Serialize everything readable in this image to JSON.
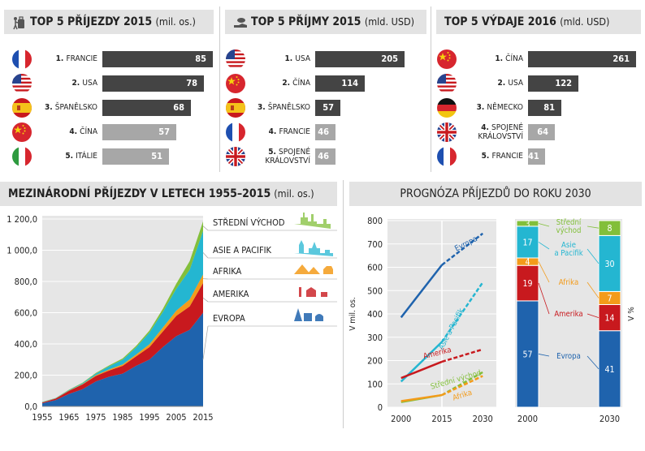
{
  "top5": [
    {
      "prefix": "TOP 5",
      "title": "PŘÍJEZDY 2015",
      "unit": "(mil. os.)",
      "items": [
        {
          "rank": "1.",
          "name": "FRANCIE",
          "value": 85,
          "flag": "fr"
        },
        {
          "rank": "2.",
          "name": "USA",
          "value": 78,
          "flag": "us"
        },
        {
          "rank": "3.",
          "name": "ŠPANĚLSKO",
          "value": 68,
          "flag": "es"
        },
        {
          "rank": "4.",
          "name": "ČÍNA",
          "value": 57,
          "flag": "cn"
        },
        {
          "rank": "5.",
          "name": "ITÁLIE",
          "value": 51,
          "flag": "it"
        }
      ]
    },
    {
      "prefix": "TOP 5",
      "title": "PŘÍJMY 2015",
      "unit": "(mld. USD)",
      "items": [
        {
          "rank": "1.",
          "name": "USA",
          "value": 205,
          "flag": "us"
        },
        {
          "rank": "2.",
          "name": "ČÍNA",
          "value": 114,
          "flag": "cn"
        },
        {
          "rank": "3.",
          "name": "ŠPANĚLSKO",
          "value": 57,
          "flag": "es"
        },
        {
          "rank": "4.",
          "name": "FRANCIE",
          "value": 46,
          "flag": "fr"
        },
        {
          "rank": "5.",
          "name": "SPOJENÉ KRÁLOVSTVÍ",
          "value": 46,
          "flag": "gb"
        }
      ]
    },
    {
      "prefix": "TOP 5",
      "title": "VÝDAJE 2016",
      "unit": "(mld. USD)",
      "items": [
        {
          "rank": "1.",
          "name": "ČÍNA",
          "value": 261,
          "flag": "cn"
        },
        {
          "rank": "2.",
          "name": "USA",
          "value": 122,
          "flag": "us"
        },
        {
          "rank": "3.",
          "name": "NĚMECKO",
          "value": 81,
          "flag": "de"
        },
        {
          "rank": "4.",
          "name": "SPOJENÉ KRÁLOVSTVÍ",
          "value": 64,
          "flag": "gb"
        },
        {
          "rank": "5.",
          "name": "FRANCIE",
          "value": 41,
          "flag": "fr"
        }
      ]
    }
  ],
  "area_chart": {
    "title": "MEZINÁRODNÍ PŘÍJEZDY V LETECH 1955–2015",
    "unit": "(mil. os.)"
  },
  "forecast": {
    "title": "PROGNÓZA PŘÍJEZDŮ DO ROKU 2030"
  },
  "colors": {
    "europe": "#1f63ad",
    "america": "#c8191e",
    "africa": "#f39b1a",
    "asia": "#24b6d1",
    "mideast": "#82bf3a",
    "dark_bar": "#444444",
    "light_bar": "#a7a7a7"
  },
  "chart_data": [
    {
      "type": "bar",
      "title": "TOP 5 PŘÍJEZDY 2015",
      "unit": "mil. os.",
      "categories": [
        "FRANCIE",
        "USA",
        "ŠPANĚLSKO",
        "ČÍNA",
        "ITÁLIE"
      ],
      "values": [
        85,
        78,
        68,
        57,
        51
      ]
    },
    {
      "type": "bar",
      "title": "TOP 5 PŘÍJMY 2015",
      "unit": "mld. USD",
      "categories": [
        "USA",
        "ČÍNA",
        "ŠPANĚLSKO",
        "FRANCIE",
        "SPOJENÉ KRÁLOVSTVÍ"
      ],
      "values": [
        205,
        114,
        57,
        46,
        46
      ]
    },
    {
      "type": "bar",
      "title": "TOP 5 VÝDAJE 2016",
      "unit": "mld. USD",
      "categories": [
        "ČÍNA",
        "USA",
        "NĚMECKO",
        "SPOJENÉ KRÁLOVSTVÍ",
        "FRANCIE"
      ],
      "values": [
        261,
        122,
        81,
        64,
        41
      ]
    },
    {
      "type": "area",
      "title": "MEZINÁRODNÍ PŘÍJEZDY V LETECH 1955–2015",
      "unit": "(mil. os.)",
      "x": [
        1955,
        1960,
        1965,
        1970,
        1975,
        1980,
        1985,
        1990,
        1995,
        2000,
        2005,
        2010,
        2015
      ],
      "xticks": [
        "1955",
        "1965",
        "1975",
        "1985",
        "1995",
        "2005",
        "2015"
      ],
      "yticks": [
        "0,0",
        "200,0",
        "400,0",
        "600,0",
        "800,0",
        "1 000,0",
        "1 200,0"
      ],
      "ylim": [
        0,
        1200
      ],
      "series": [
        {
          "name": "EVROPA",
          "color": "#1f63ad",
          "values": [
            20,
            40,
            80,
            110,
            160,
            190,
            210,
            260,
            300,
            380,
            450,
            490,
            600
          ]
        },
        {
          "name": "AMERIKA",
          "color": "#c8191e",
          "values": [
            5,
            10,
            20,
            30,
            35,
            40,
            50,
            60,
            80,
            100,
            130,
            150,
            190
          ]
        },
        {
          "name": "AFRIKA",
          "color": "#f39b1a",
          "values": [
            1,
            1,
            2,
            3,
            5,
            7,
            9,
            12,
            18,
            25,
            33,
            45,
            55
          ]
        },
        {
          "name": "ASIE A PACIFIK",
          "color": "#24b6d1",
          "values": [
            2,
            2,
            3,
            5,
            10,
            20,
            30,
            45,
            75,
            100,
            140,
            190,
            280
          ]
        },
        {
          "name": "STŘEDNÍ VÝCHOD",
          "color": "#82bf3a",
          "values": [
            1,
            1,
            2,
            3,
            4,
            6,
            8,
            10,
            13,
            20,
            33,
            55,
            60
          ]
        }
      ]
    },
    {
      "type": "line",
      "title": "PROGNÓZA PŘÍJEZDŮ DO ROKU 2030",
      "ylabel": "V mil. os.",
      "x": [
        2000,
        2015,
        2030
      ],
      "ylim": [
        0,
        800
      ],
      "yticks": [
        "0",
        "100",
        "200",
        "300",
        "400",
        "500",
        "600",
        "700",
        "800"
      ],
      "xticks": [
        "2000",
        "2015",
        "2030"
      ],
      "series": [
        {
          "name": "Evropa",
          "color": "#1f63ad",
          "values": [
            385,
            610,
            745
          ]
        },
        {
          "name": "Asie a Pacifik",
          "color": "#24b6d1",
          "values": [
            110,
            280,
            535
          ]
        },
        {
          "name": "Amerika",
          "color": "#c8191e",
          "values": [
            125,
            195,
            248
          ]
        },
        {
          "name": "Střední východ",
          "color": "#82bf3a",
          "values": [
            22,
            52,
            150
          ]
        },
        {
          "name": "Afrika",
          "color": "#f39b1a",
          "values": [
            26,
            52,
            134
          ]
        }
      ]
    },
    {
      "type": "bar",
      "stacked": true,
      "title": "PROGNÓZA PŘÍJEZDŮ DO ROKU 2030",
      "ylabel": "V %",
      "categories": [
        "2000",
        "2030"
      ],
      "series": [
        {
          "name": "Evropa",
          "color": "#1f63ad",
          "values": [
            57,
            41
          ]
        },
        {
          "name": "Amerika",
          "color": "#c8191e",
          "values": [
            19,
            14
          ]
        },
        {
          "name": "Afrika",
          "color": "#f39b1a",
          "values": [
            4,
            7
          ]
        },
        {
          "name": "Asie a Pacifik",
          "color": "#24b6d1",
          "values": [
            17,
            30
          ]
        },
        {
          "name": "Střední východ",
          "color": "#82bf3a",
          "values": [
            3,
            8
          ]
        }
      ]
    }
  ]
}
